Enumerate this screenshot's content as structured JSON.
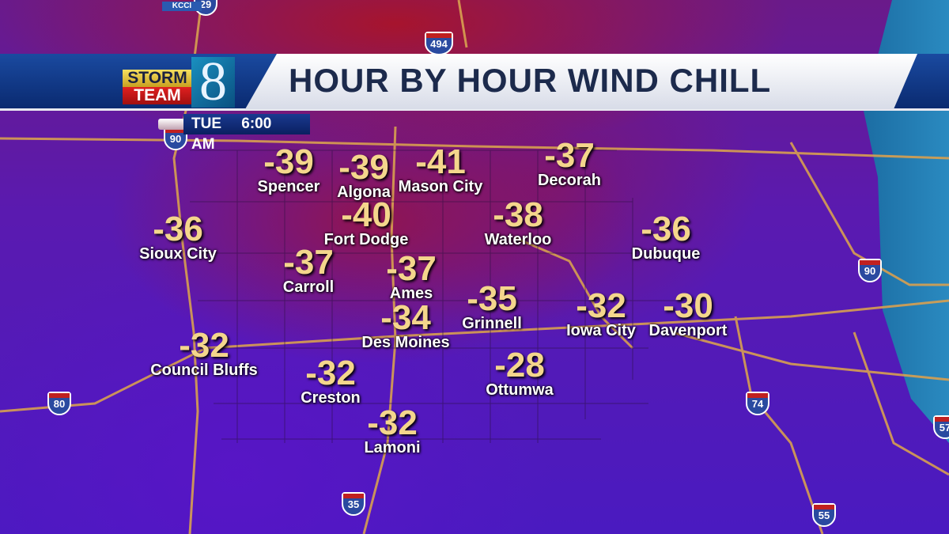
{
  "header": {
    "brand_top": "KCCI",
    "brand_line1": "STORM",
    "brand_line2": "TEAM",
    "brand_number": "8",
    "title": "HOUR BY HOUR WIND CHILL"
  },
  "time": {
    "day": "TUE",
    "time": "6:00 AM"
  },
  "colors": {
    "temp": "#f4d68c",
    "title": "#1c2a4c",
    "header_blue": "#1a4aa0",
    "road": "#d8a050"
  },
  "interstates": [
    "29",
    "494",
    "90",
    "90",
    "80",
    "74",
    "35",
    "55",
    "57"
  ],
  "cities": [
    {
      "name": "Spencer",
      "temp": "-39"
    },
    {
      "name": "Algona",
      "temp": "-39"
    },
    {
      "name": "Mason City",
      "temp": "-41"
    },
    {
      "name": "Decorah",
      "temp": "-37"
    },
    {
      "name": "Sioux City",
      "temp": "-36"
    },
    {
      "name": "Fort Dodge",
      "temp": "-40"
    },
    {
      "name": "Waterloo",
      "temp": "-38"
    },
    {
      "name": "Dubuque",
      "temp": "-36"
    },
    {
      "name": "Carroll",
      "temp": "-37"
    },
    {
      "name": "Ames",
      "temp": "-37"
    },
    {
      "name": "Grinnell",
      "temp": "-35"
    },
    {
      "name": "Iowa City",
      "temp": "-32"
    },
    {
      "name": "Davenport",
      "temp": "-30"
    },
    {
      "name": "Des Moines",
      "temp": "-34"
    },
    {
      "name": "Council Bluffs",
      "temp": "-32"
    },
    {
      "name": "Creston",
      "temp": "-32"
    },
    {
      "name": "Ottumwa",
      "temp": "-28"
    },
    {
      "name": "Lamoni",
      "temp": "-32"
    }
  ]
}
